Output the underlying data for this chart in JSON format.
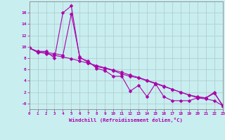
{
  "xlabel": "Windchill (Refroidissement éolien,°C)",
  "background_color": "#c8eef0",
  "line_color": "#aa00aa",
  "grid_color": "#b0c8c8",
  "x_values": [
    0,
    1,
    2,
    3,
    4,
    5,
    6,
    7,
    8,
    9,
    10,
    11,
    12,
    13,
    14,
    15,
    16,
    17,
    18,
    19,
    20,
    21,
    22,
    23
  ],
  "line1_y": [
    9.8,
    9.2,
    9.2,
    8.0,
    16.0,
    17.2,
    8.0,
    7.5,
    6.2,
    5.8,
    4.8,
    4.8,
    2.2,
    3.2,
    1.2,
    3.5,
    1.2,
    0.5,
    0.5,
    0.5,
    1.0,
    1.0,
    2.0,
    -0.5
  ],
  "line2_y": [
    9.8,
    9.0,
    9.0,
    8.8,
    8.5,
    15.8,
    8.2,
    7.2,
    6.5,
    6.2,
    5.8,
    5.2,
    4.8,
    4.5,
    4.0,
    3.5,
    3.0,
    2.5,
    2.0,
    1.5,
    1.2,
    1.0,
    1.8,
    -0.3
  ],
  "line3_y": [
    9.8,
    9.1,
    8.8,
    8.5,
    8.2,
    7.9,
    7.5,
    7.1,
    6.7,
    6.3,
    5.9,
    5.5,
    5.0,
    4.6,
    4.1,
    3.6,
    3.1,
    2.5,
    2.0,
    1.5,
    1.0,
    0.8,
    0.5,
    -0.4
  ],
  "ylim": [
    -1.0,
    18.0
  ],
  "xlim": [
    0,
    23
  ],
  "ytick_vals": [
    0,
    2,
    4,
    6,
    8,
    10,
    12,
    14,
    16
  ],
  "ytick_labels": [
    "-0",
    "2",
    "4",
    "6",
    "8",
    "10",
    "12",
    "14",
    "16"
  ],
  "xticks": [
    0,
    1,
    2,
    3,
    4,
    5,
    6,
    7,
    8,
    9,
    10,
    11,
    12,
    13,
    14,
    15,
    16,
    17,
    18,
    19,
    20,
    21,
    22,
    23
  ]
}
